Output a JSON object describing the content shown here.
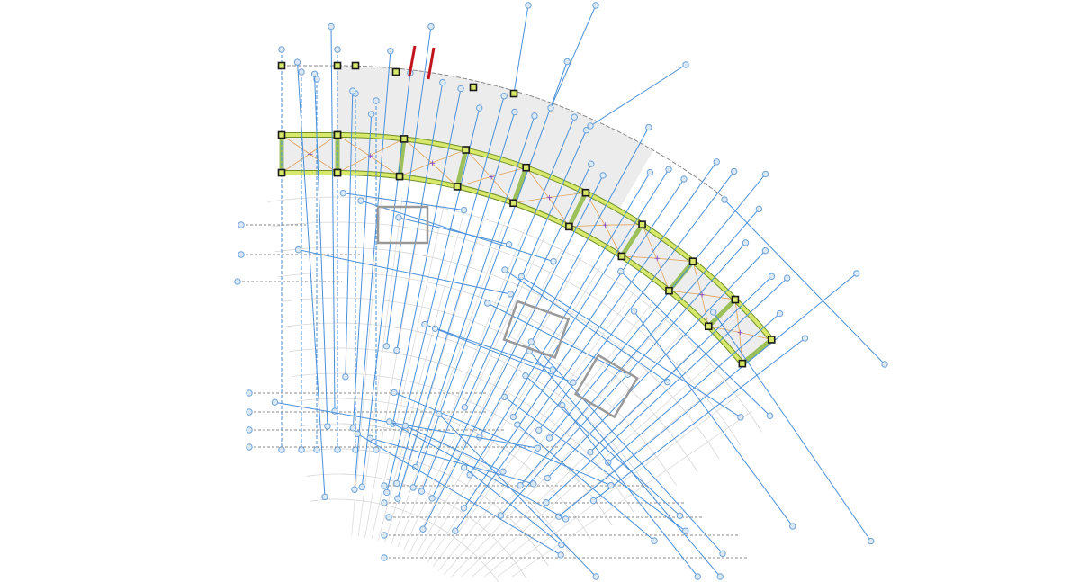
{
  "drawing": {
    "type": "structural-grid-plan",
    "colors": {
      "grid_line": "#4a90d9",
      "grid_bubble": "#6fa3d8",
      "reference_line": "#8a8a8a",
      "beam_fill": "#d8e86a",
      "beam_edge": "#6f8f2a",
      "slab_fill": "#ececec",
      "slab_hatch": "#e2a35a",
      "column": "#1a1a1a",
      "marker": "#7a3fd0",
      "highlight": "#c0161b"
    }
  }
}
